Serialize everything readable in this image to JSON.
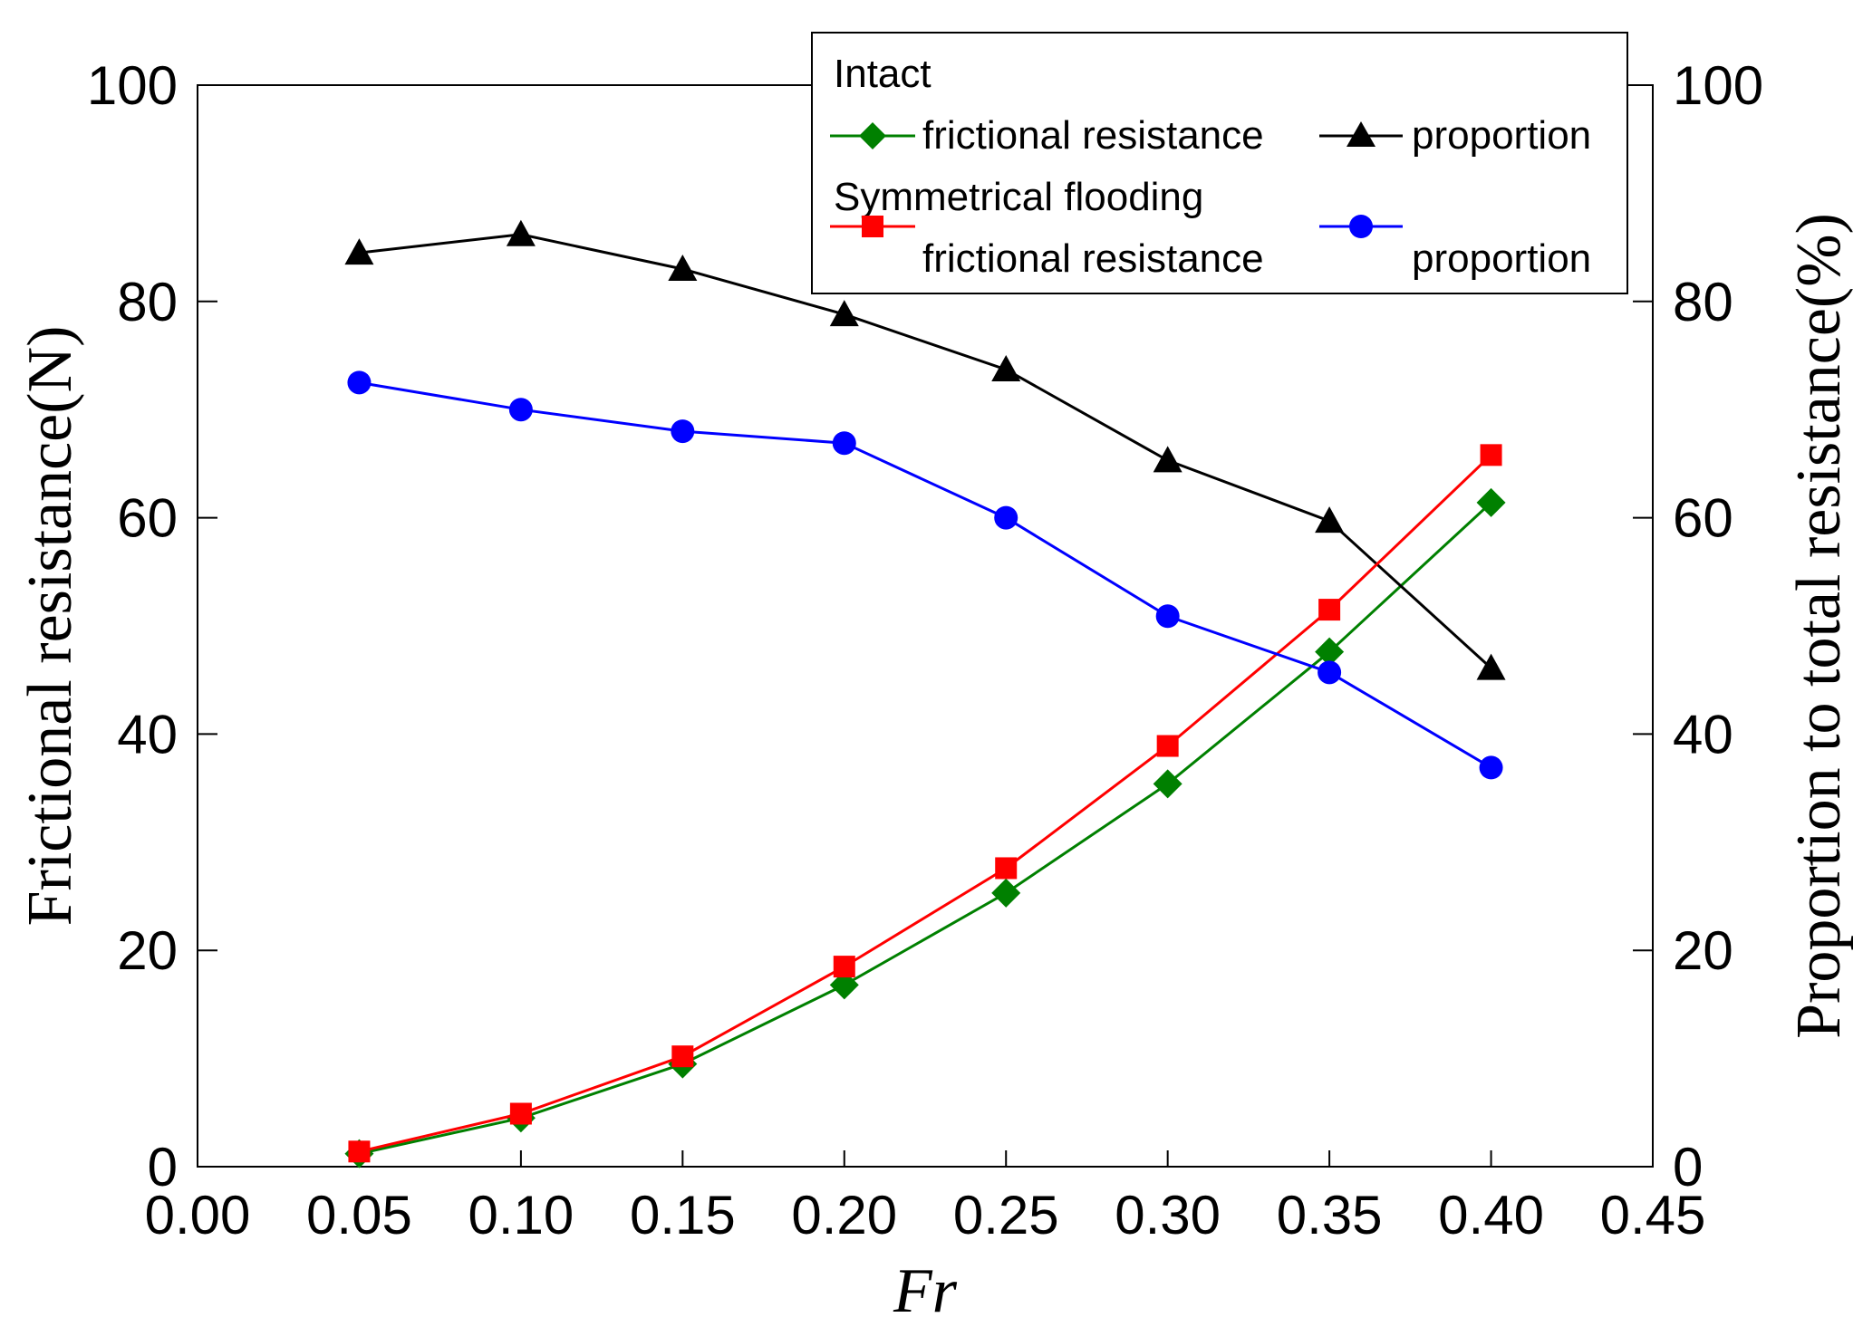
{
  "chart_data": {
    "type": "line",
    "x": [
      0.05,
      0.1,
      0.15,
      0.2,
      0.25,
      0.3,
      0.35,
      0.4
    ],
    "xlim": [
      0.0,
      0.45
    ],
    "ylim_left": [
      0,
      100
    ],
    "ylim_right": [
      0,
      100
    ],
    "x_ticks": [
      "0.00",
      "0.05",
      "0.10",
      "0.15",
      "0.20",
      "0.25",
      "0.30",
      "0.35",
      "0.40",
      "0.45"
    ],
    "y_ticks_left": [
      "0",
      "20",
      "40",
      "60",
      "80",
      "100"
    ],
    "y_ticks_right": [
      "0",
      "20",
      "40",
      "60",
      "80",
      "100"
    ],
    "xlabel": "Fr",
    "ylabel_left": "Frictional resistance(N)",
    "ylabel_right": "Proportion to total resistance(%)",
    "legend_placement": "top-right",
    "legend": {
      "group1_title": "Intact",
      "group2_title": "Symmetrical flooding"
    },
    "series": [
      {
        "id": "intact_frictional",
        "name": "frictional resistance",
        "group": "Intact",
        "axis": "left",
        "marker": "diamond",
        "color": "#008000",
        "values": [
          1.2,
          4.5,
          9.5,
          16.8,
          25.3,
          35.4,
          47.6,
          61.4
        ]
      },
      {
        "id": "intact_proportion",
        "name": "proportion",
        "group": "Intact",
        "axis": "right",
        "marker": "triangle",
        "color": "#000000",
        "values": [
          84.5,
          86.2,
          83.0,
          78.8,
          73.7,
          65.3,
          59.7,
          46.1
        ]
      },
      {
        "id": "flood_frictional",
        "name": "frictional resistance",
        "group": "Symmetrical flooding",
        "axis": "left",
        "marker": "square",
        "color": "#ff0000",
        "values": [
          1.4,
          4.9,
          10.2,
          18.5,
          27.6,
          38.9,
          51.5,
          65.8
        ]
      },
      {
        "id": "flood_proportion",
        "name": "proportion",
        "group": "Symmetrical flooding",
        "axis": "right",
        "marker": "circle",
        "color": "#0000ff",
        "values": [
          72.5,
          70.0,
          68.0,
          66.9,
          60.0,
          50.9,
          45.7,
          36.9
        ]
      }
    ]
  }
}
